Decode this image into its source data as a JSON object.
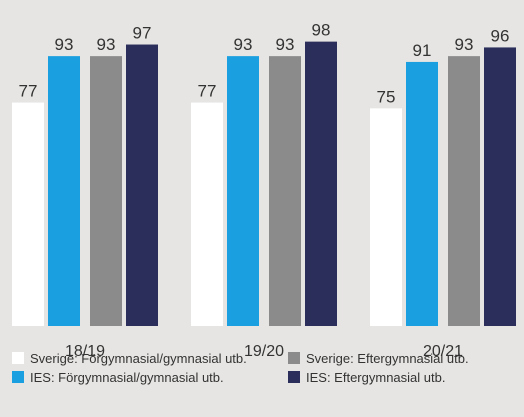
{
  "chart_data": {
    "type": "bar",
    "categories": [
      "18/19",
      "19/20",
      "20/21"
    ],
    "series": [
      {
        "name": "Sverige: Förgymnasial/gymnasial utb.",
        "color": "#ffffff",
        "values": [
          77,
          77,
          75
        ]
      },
      {
        "name": "IES: Förgymnasial/gymnasial utb.",
        "color": "#1a9fe0",
        "values": [
          93,
          93,
          91
        ]
      },
      {
        "name": "Sverige: Eftergymnasial utb.",
        "color": "#8b8b8b",
        "values": [
          93,
          93,
          93
        ]
      },
      {
        "name": "IES: Eftergymnasial utb.",
        "color": "#2b2e5b",
        "values": [
          97,
          98,
          96
        ]
      }
    ],
    "ylim": [
      0,
      112
    ],
    "grid": false
  }
}
